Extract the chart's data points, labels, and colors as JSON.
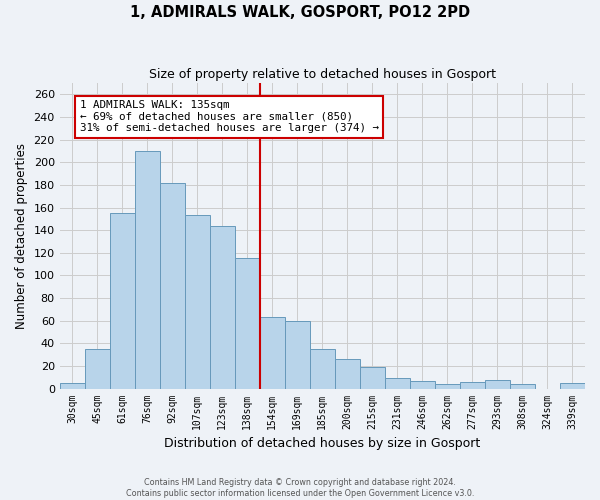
{
  "title": "1, ADMIRALS WALK, GOSPORT, PO12 2PD",
  "subtitle": "Size of property relative to detached houses in Gosport",
  "xlabel": "Distribution of detached houses by size in Gosport",
  "ylabel": "Number of detached properties",
  "footer_line1": "Contains HM Land Registry data © Crown copyright and database right 2024.",
  "footer_line2": "Contains public sector information licensed under the Open Government Licence v3.0.",
  "categories": [
    "30sqm",
    "45sqm",
    "61sqm",
    "76sqm",
    "92sqm",
    "107sqm",
    "123sqm",
    "138sqm",
    "154sqm",
    "169sqm",
    "185sqm",
    "200sqm",
    "215sqm",
    "231sqm",
    "246sqm",
    "262sqm",
    "277sqm",
    "293sqm",
    "308sqm",
    "324sqm",
    "339sqm"
  ],
  "values": [
    5,
    35,
    155,
    210,
    182,
    153,
    144,
    115,
    63,
    60,
    35,
    26,
    19,
    9,
    7,
    4,
    6,
    8,
    4,
    0,
    5
  ],
  "bar_color": "#b8d4ea",
  "bar_edge_color": "#6699bb",
  "vline_x": 7.5,
  "vline_color": "#cc0000",
  "annotation_text_line1": "1 ADMIRALS WALK: 135sqm",
  "annotation_text_line2": "← 69% of detached houses are smaller (850)",
  "annotation_text_line3": "31% of semi-detached houses are larger (374) →",
  "annotation_box_color": "#ffffff",
  "annotation_box_edge_color": "#cc0000",
  "ylim": [
    0,
    270
  ],
  "yticks": [
    0,
    20,
    40,
    60,
    80,
    100,
    120,
    140,
    160,
    180,
    200,
    220,
    240,
    260
  ],
  "grid_color": "#cccccc",
  "background_color": "#eef2f7"
}
